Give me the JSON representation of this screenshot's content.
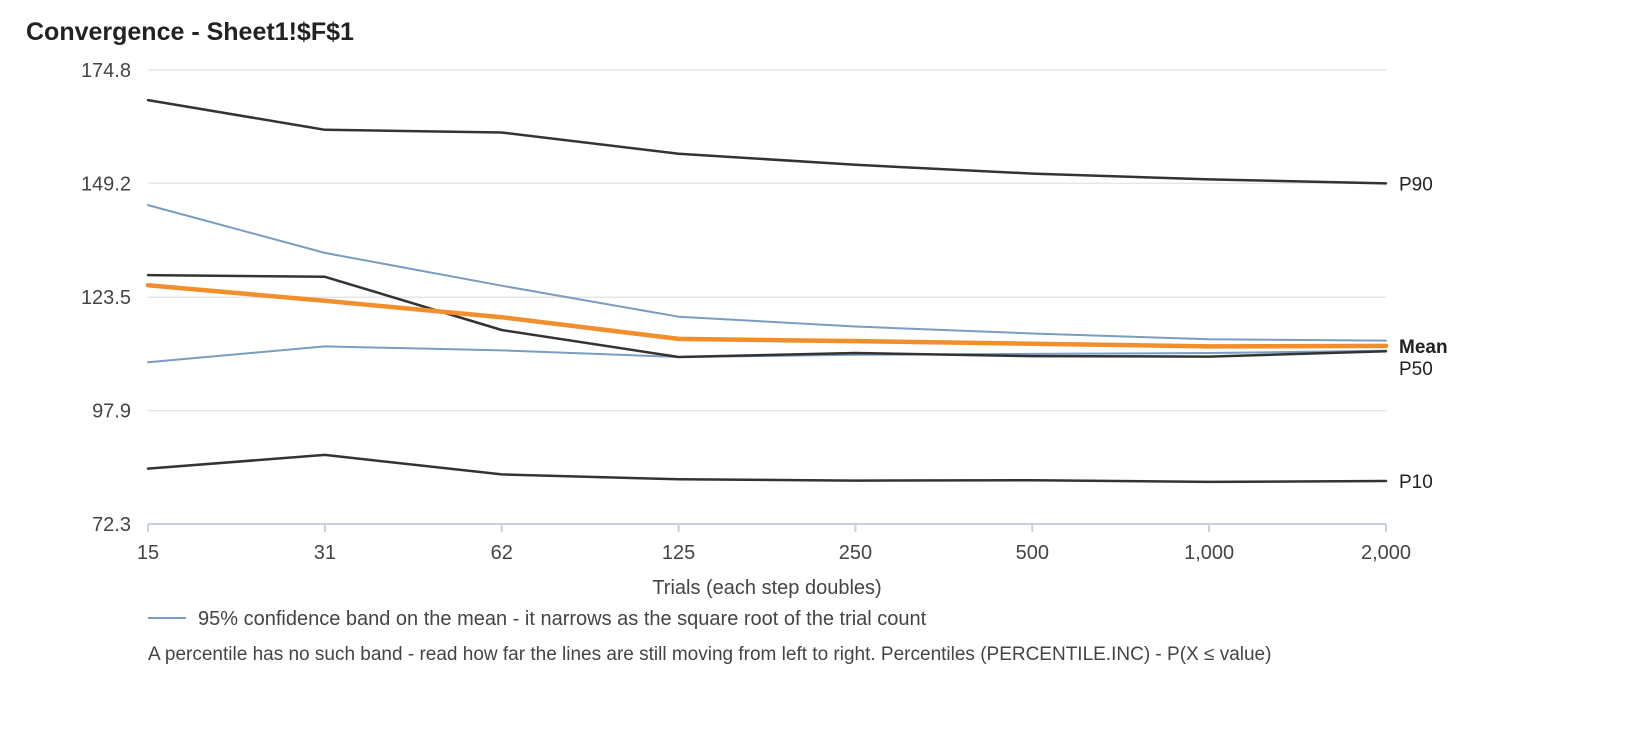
{
  "chart_data": {
    "type": "line",
    "title": "Convergence - Sheet1!$F$1",
    "xlabel": "Trials (each step doubles)",
    "ylabel": "",
    "x": [
      "15",
      "31",
      "62",
      "125",
      "250",
      "500",
      "1,000",
      "2,000"
    ],
    "ylim": [
      72.3,
      174.8
    ],
    "yticks": [
      "72.3",
      "97.9",
      "123.5",
      "149.2",
      "174.8"
    ],
    "grid": true,
    "colors": {
      "percentile": "#333333",
      "mean": "#F28E2B",
      "mean_label": "#E07B1A",
      "band": "#7A9CC0",
      "grid": "#E6E6E6",
      "axis": "#C8D0DC"
    },
    "series": [
      {
        "name": "P90",
        "role": "percentile",
        "values": [
          168.0,
          161.3,
          160.7,
          155.9,
          153.4,
          151.4,
          150.1,
          149.2
        ]
      },
      {
        "name": "P50",
        "role": "percentile",
        "values": [
          128.5,
          128.1,
          116.1,
          110.0,
          110.9,
          110.2,
          110.1,
          111.3
        ]
      },
      {
        "name": "P10",
        "role": "percentile",
        "values": [
          84.8,
          87.9,
          83.5,
          82.4,
          82.1,
          82.2,
          81.8,
          82.0
        ]
      },
      {
        "role": "band-upper",
        "values": [
          144.3,
          133.5,
          126.1,
          119.1,
          116.9,
          115.3,
          114.0,
          113.7
        ]
      },
      {
        "role": "band-lower",
        "values": [
          108.8,
          112.4,
          111.5,
          110.0,
          110.5,
          110.7,
          110.9,
          111.4
        ]
      },
      {
        "name": "Mean",
        "role": "mean",
        "values": [
          126.2,
          122.7,
          119.0,
          114.1,
          113.6,
          113.0,
          112.4,
          112.5
        ]
      }
    ],
    "legend": {
      "band_label": "95% confidence band on the mean - it narrows as the square root of the trial count",
      "note": "A percentile has no such band - read how far the lines are still moving from left to right. Percentiles (PERCENTILE.INC) - P(X ≤ value)"
    }
  }
}
